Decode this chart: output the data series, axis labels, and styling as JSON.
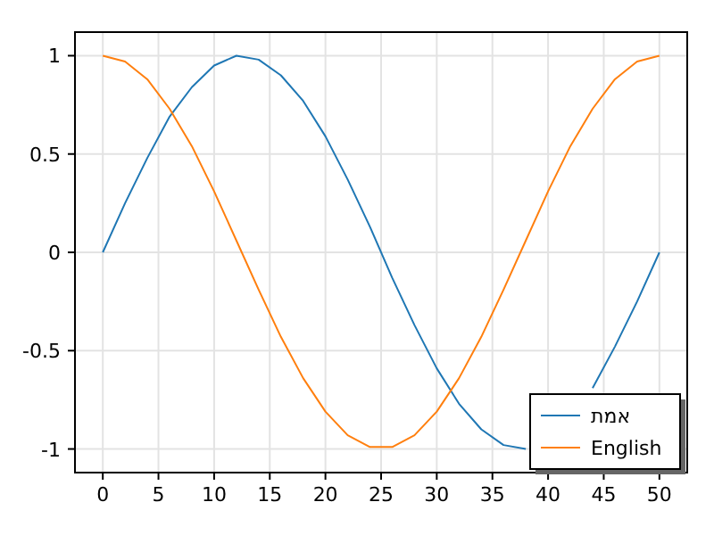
{
  "chart_data": {
    "type": "line",
    "x": [
      0,
      2,
      4,
      6,
      8,
      10,
      12,
      14,
      16,
      18,
      20,
      22,
      24,
      26,
      28,
      30,
      32,
      34,
      36,
      38,
      40,
      42,
      44,
      46,
      48,
      50
    ],
    "series": [
      {
        "name": "אמת",
        "color": "#1f77b4",
        "values": [
          0,
          0.25,
          0.48,
          0.69,
          0.84,
          0.95,
          1,
          0.98,
          0.9,
          0.77,
          0.59,
          0.37,
          0.13,
          -0.13,
          -0.37,
          -0.59,
          -0.77,
          -0.9,
          -0.98,
          -1,
          null,
          null,
          -0.69,
          -0.48,
          -0.25,
          0
        ]
      },
      {
        "name": "English",
        "color": "#ff7f0e",
        "values": [
          1,
          0.97,
          0.88,
          0.73,
          0.54,
          0.31,
          0.06,
          -0.19,
          -0.43,
          -0.64,
          -0.81,
          -0.93,
          -0.99,
          -0.99,
          -0.93,
          -0.81,
          -0.64,
          -0.43,
          -0.19,
          0.06,
          0.31,
          0.54,
          0.73,
          0.88,
          0.97,
          1
        ]
      }
    ],
    "xlim": [
      -2.5,
      52.5
    ],
    "xticks": [
      0,
      5,
      10,
      15,
      20,
      25,
      30,
      35,
      40,
      45,
      50
    ],
    "ylim": [
      -1.12,
      1.12
    ],
    "yticks": [
      -1,
      -0.5,
      0,
      0.5,
      1
    ],
    "grid": true,
    "legend": "bottom right",
    "marker": "none",
    "line_style": "solid"
  }
}
